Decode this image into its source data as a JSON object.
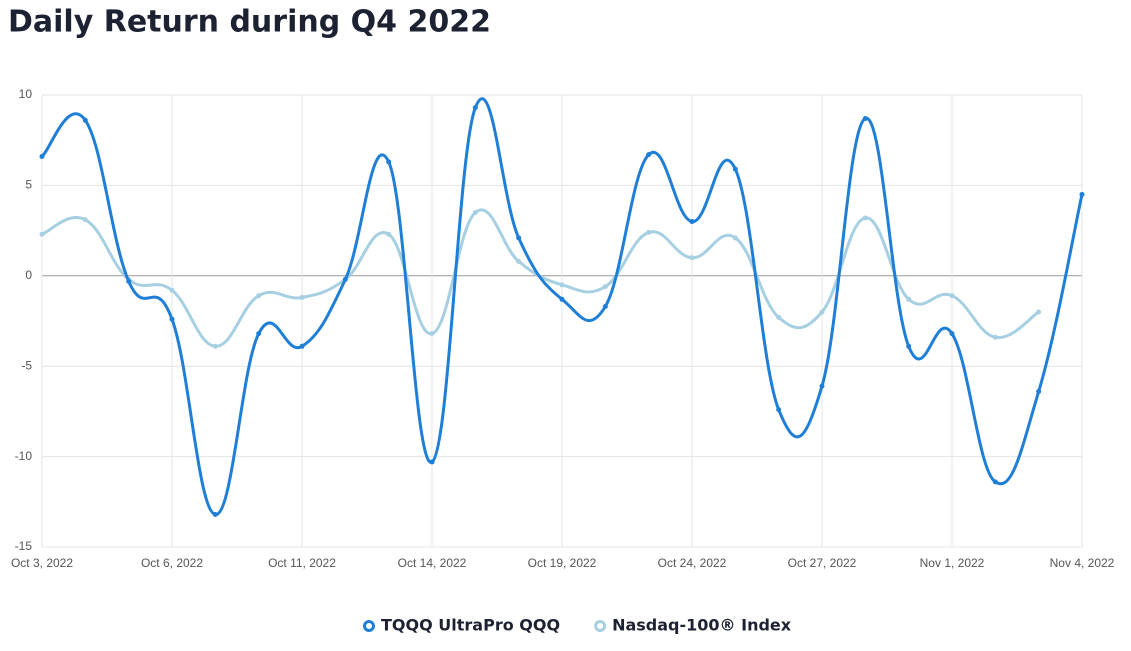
{
  "chart_data": {
    "type": "line",
    "title": "Daily Return during Q4 2022",
    "categories": [
      "Oct 3, 2022",
      null,
      null,
      "Oct 6, 2022",
      null,
      null,
      "Oct 11, 2022",
      null,
      null,
      "Oct 14, 2022",
      null,
      null,
      "Oct 19, 2022",
      null,
      null,
      "Oct 24, 2022",
      null,
      null,
      "Oct 27, 2022",
      null,
      null,
      "Nov 1, 2022",
      null,
      null,
      "Nov 4, 2022"
    ],
    "series": [
      {
        "name": "TQQQ UltraPro QQQ",
        "color": "#1f7fd6",
        "values": [
          6.6,
          8.6,
          -0.3,
          -2.4,
          -13.2,
          -3.2,
          -3.9,
          -0.2,
          6.3,
          -10.3,
          9.3,
          2.1,
          -1.3,
          -1.7,
          6.7,
          3.0,
          5.9,
          -7.4,
          -6.1,
          8.7,
          -3.9,
          -3.2,
          -11.4,
          -6.4,
          4.5
        ]
      },
      {
        "name": "Nasdaq-100® Index",
        "color": "#a6cfe2",
        "values": [
          2.3,
          3.1,
          -0.2,
          -0.8,
          -3.9,
          -1.1,
          -1.2,
          -0.2,
          2.3,
          -3.2,
          3.5,
          0.8,
          -0.5,
          -0.6,
          2.4,
          1.0,
          2.1,
          -2.3,
          -2.0,
          3.2,
          -1.3,
          -1.1,
          -3.4,
          -2.0,
          null
        ]
      }
    ],
    "ylim": [
      -15,
      10
    ],
    "yticks": [
      10,
      5,
      0,
      -5,
      -10,
      -15
    ],
    "grid": true,
    "legend": "bottom"
  }
}
